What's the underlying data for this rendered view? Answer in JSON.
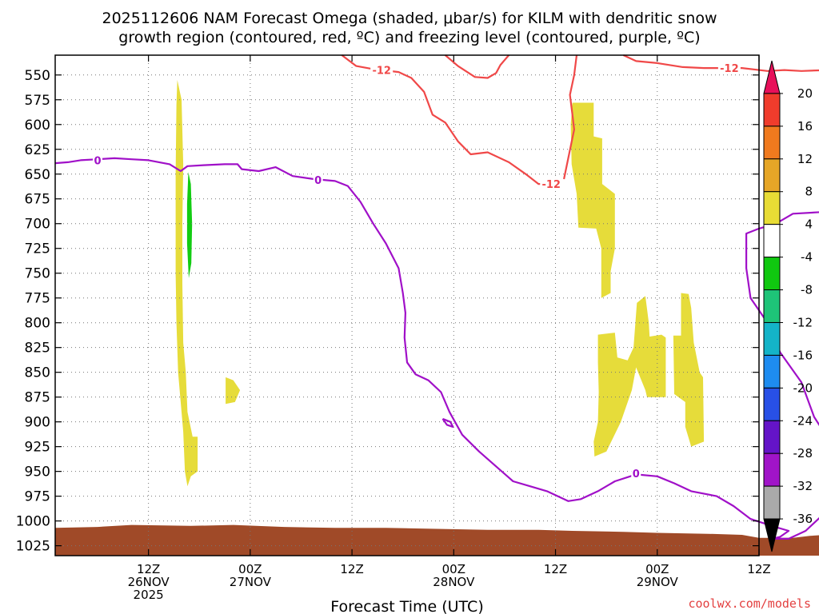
{
  "chart_data": {
    "type": "contour-time-height",
    "title_line1": "2025112606 NAM Forecast Omega (shaded, μbar/s) for KILM with dendritic snow",
    "title_line2": "growth region (contoured, red, ºC) and freezing level (contoured, purple, ºC)",
    "xlabel": "Forecast Time (UTC)",
    "credit": "coolwx.com/models",
    "xlim_hours": [
      -11,
      72
    ],
    "ylim_hpa": [
      530,
      1035
    ],
    "y_ticks": [
      550,
      575,
      600,
      625,
      650,
      675,
      700,
      725,
      750,
      775,
      800,
      825,
      850,
      875,
      900,
      925,
      950,
      975,
      1000,
      1025
    ],
    "x_ticks": [
      {
        "hour": 0,
        "line1": "12Z",
        "line2": "26NOV",
        "line3": "2025"
      },
      {
        "hour": 12,
        "line1": "00Z",
        "line2": "27NOV",
        "line3": ""
      },
      {
        "hour": 24,
        "line1": "12Z",
        "line2": "",
        "line3": ""
      },
      {
        "hour": 36,
        "line1": "00Z",
        "line2": "28NOV",
        "line3": ""
      },
      {
        "hour": 48,
        "line1": "12Z",
        "line2": "",
        "line3": ""
      },
      {
        "hour": 60,
        "line1": "00Z",
        "line2": "29NOV",
        "line3": ""
      },
      {
        "hour": 72,
        "line1": "12Z",
        "line2": "",
        "line3": ""
      }
    ],
    "grid": true,
    "colorbar": {
      "labels": [
        "20",
        "16",
        "12",
        "8",
        "4",
        "-4",
        "-8",
        "-12",
        "-16",
        "-20",
        "-24",
        "-28",
        "-32",
        "-36"
      ],
      "colors_top_to_bottom": [
        "#e8105a",
        "#f03c2c",
        "#f07a1e",
        "#e6a627",
        "#e8dc35",
        "#ffffff",
        "#10c810",
        "#1ec478",
        "#14b4c8",
        "#1e8cf0",
        "#2850e6",
        "#6414c8",
        "#a014c8",
        "#aaaaaa",
        "#000000"
      ]
    },
    "shaded_regions": [
      {
        "name": "4 to 8",
        "color": "#e6dc3a",
        "polygons": [
          [
            [
              3.4,
              555
            ],
            [
              3.9,
              575
            ],
            [
              4.1,
              640
            ],
            [
              4.0,
              700
            ],
            [
              4.0,
              760
            ],
            [
              4.1,
              820
            ],
            [
              4.4,
              850
            ],
            [
              4.6,
              890
            ],
            [
              5.2,
              915
            ],
            [
              5.8,
              915
            ],
            [
              5.8,
              950
            ],
            [
              5.0,
              955
            ],
            [
              4.6,
              965
            ],
            [
              4.3,
              950
            ],
            [
              4.1,
              910
            ],
            [
              3.8,
              880
            ],
            [
              3.5,
              850
            ],
            [
              3.3,
              800
            ],
            [
              3.2,
              750
            ],
            [
              3.2,
              700
            ],
            [
              3.2,
              650
            ],
            [
              3.3,
              580
            ]
          ],
          [
            [
              9.1,
              855
            ],
            [
              10.0,
              858
            ],
            [
              10.8,
              868
            ],
            [
              10.2,
              880
            ],
            [
              9.1,
              882
            ]
          ],
          [
            [
              50.0,
              578
            ],
            [
              52.5,
              578
            ],
            [
              52.5,
              612
            ],
            [
              53.5,
              614
            ],
            [
              53.5,
              660
            ],
            [
              55.0,
              670
            ],
            [
              55.0,
              725
            ],
            [
              54.5,
              748
            ],
            [
              54.5,
              770
            ],
            [
              53.4,
              775
            ],
            [
              53.4,
              725
            ],
            [
              52.8,
              705
            ],
            [
              50.7,
              704
            ],
            [
              50.5,
              670
            ],
            [
              49.9,
              640
            ],
            [
              49.8,
              600
            ]
          ],
          [
            [
              53.0,
              812
            ],
            [
              55.0,
              810
            ],
            [
              55.3,
              835
            ],
            [
              56.5,
              838
            ],
            [
              57.2,
              825
            ],
            [
              57.6,
              780
            ],
            [
              58.6,
              773
            ],
            [
              59.0,
              800
            ],
            [
              59.1,
              814
            ],
            [
              60.5,
              812
            ],
            [
              61.0,
              815
            ],
            [
              61.0,
              875
            ],
            [
              58.8,
              875
            ],
            [
              58.6,
              868
            ],
            [
              57.5,
              845
            ],
            [
              57.0,
              868
            ],
            [
              55.7,
              900
            ],
            [
              54.0,
              930
            ],
            [
              52.6,
              935
            ],
            [
              52.5,
              920
            ],
            [
              53.0,
              900
            ],
            [
              53.1,
              870
            ],
            [
              53.0,
              840
            ]
          ],
          [
            [
              62.8,
              770
            ],
            [
              63.7,
              771
            ],
            [
              64.0,
              785
            ],
            [
              64.3,
              820
            ],
            [
              65.0,
              850
            ],
            [
              65.4,
              855
            ],
            [
              65.5,
              920
            ],
            [
              64.0,
              925
            ],
            [
              63.3,
              905
            ],
            [
              63.3,
              880
            ],
            [
              62.0,
              872
            ],
            [
              61.9,
              813
            ],
            [
              62.8,
              813
            ]
          ]
        ]
      },
      {
        "name": "-8 to -4",
        "color": "#12cc12",
        "polygons": [
          [
            [
              4.7,
              648
            ],
            [
              5.0,
              660
            ],
            [
              5.15,
              700
            ],
            [
              5.05,
              740
            ],
            [
              4.75,
              755
            ],
            [
              4.55,
              720
            ],
            [
              4.55,
              680
            ]
          ]
        ]
      },
      {
        "name": "terrain",
        "color": "#a04a28",
        "polygons": [
          [
            [
              -11,
              1007
            ],
            [
              -6,
              1006
            ],
            [
              -2,
              1004
            ],
            [
              5,
              1005
            ],
            [
              10,
              1004
            ],
            [
              16,
              1006
            ],
            [
              22,
              1007
            ],
            [
              28,
              1007
            ],
            [
              34,
              1008
            ],
            [
              40,
              1009
            ],
            [
              46,
              1009
            ],
            [
              50,
              1010
            ],
            [
              56,
              1011
            ],
            [
              60,
              1012
            ],
            [
              66,
              1013
            ],
            [
              70,
              1014
            ],
            [
              72,
              1017
            ],
            [
              76,
              1017
            ],
            [
              78,
              1015
            ],
            [
              80,
              1014
            ],
            [
              83,
              1013
            ],
            [
              83,
              1035
            ],
            [
              -11,
              1035
            ]
          ]
        ]
      }
    ],
    "contours": [
      {
        "series": "dendritic snow growth region",
        "level": "-12",
        "color": "#f04848",
        "points": [
          [
            22.8,
            530
          ],
          [
            24.5,
            541
          ],
          [
            26.5,
            544
          ],
          [
            29.5,
            547
          ],
          [
            31.0,
            553
          ],
          [
            32.5,
            567
          ],
          [
            33.5,
            590
          ],
          [
            35.0,
            598
          ],
          [
            36.5,
            617
          ],
          [
            38.0,
            630
          ],
          [
            40.0,
            628
          ],
          [
            42.5,
            638
          ],
          [
            44.5,
            650
          ],
          [
            46.0,
            660
          ],
          [
            47.8,
            660
          ]
        ]
      },
      {
        "series": "dendritic snow growth region",
        "level": "-12",
        "color": "#f04848",
        "points": [
          [
            35.0,
            530
          ],
          [
            36.5,
            541
          ],
          [
            38.5,
            552
          ],
          [
            40.0,
            553
          ],
          [
            41.0,
            548
          ],
          [
            41.5,
            540
          ],
          [
            42.5,
            530
          ]
        ]
      },
      {
        "series": "dendritic snow growth region",
        "level": "-12",
        "color": "#f04848",
        "points": [
          [
            49.0,
            655
          ],
          [
            49.6,
            630
          ],
          [
            50.2,
            605
          ],
          [
            50.0,
            590
          ],
          [
            49.7,
            570
          ],
          [
            50.2,
            550
          ],
          [
            50.5,
            530
          ]
        ]
      },
      {
        "series": "dendritic snow growth region",
        "level": "-12",
        "color": "#f04848",
        "points": [
          [
            56.0,
            530
          ],
          [
            57.5,
            536
          ],
          [
            60.0,
            538
          ],
          [
            63.0,
            542
          ],
          [
            65.5,
            543
          ],
          [
            68.0,
            543
          ],
          [
            70.0,
            543
          ],
          [
            73.0,
            546
          ],
          [
            75.0,
            545
          ],
          [
            77.0,
            546
          ],
          [
            80.0,
            545
          ],
          [
            83.0,
            545
          ]
        ]
      },
      {
        "series": "freezing level",
        "level": "0",
        "color": "#a010c8",
        "points": [
          [
            -11,
            639
          ],
          [
            -9.5,
            638
          ],
          [
            -8,
            636
          ],
          [
            -6,
            635
          ],
          [
            -4,
            634
          ],
          [
            -2,
            635
          ],
          [
            0,
            636
          ],
          [
            2.5,
            640
          ],
          [
            3.8,
            647
          ],
          [
            4.6,
            642
          ],
          [
            6.5,
            641
          ],
          [
            9.0,
            640
          ],
          [
            10.5,
            640
          ],
          [
            11.0,
            645
          ],
          [
            13.0,
            647
          ],
          [
            15.0,
            643
          ],
          [
            17.0,
            652
          ],
          [
            19.5,
            655
          ],
          [
            22.0,
            657
          ],
          [
            23.5,
            662
          ],
          [
            25.0,
            678
          ],
          [
            26.5,
            700
          ],
          [
            28.0,
            720
          ],
          [
            29.5,
            745
          ],
          [
            30.0,
            770
          ],
          [
            30.3,
            790
          ],
          [
            30.2,
            815
          ],
          [
            30.5,
            840
          ],
          [
            31.5,
            852
          ],
          [
            33.0,
            858
          ],
          [
            34.5,
            870
          ],
          [
            35.5,
            890
          ],
          [
            37.0,
            913
          ],
          [
            39.0,
            930
          ],
          [
            41.0,
            945
          ],
          [
            43.0,
            960
          ],
          [
            45.0,
            965
          ],
          [
            47.0,
            970
          ],
          [
            49.5,
            980
          ],
          [
            51.0,
            978
          ],
          [
            53.0,
            970
          ],
          [
            55.0,
            960
          ],
          [
            57.5,
            953
          ],
          [
            60.0,
            955
          ],
          [
            62.0,
            962
          ],
          [
            64.0,
            970
          ],
          [
            67.0,
            975
          ],
          [
            69.0,
            985
          ],
          [
            71.0,
            998
          ],
          [
            73.5,
            1005
          ],
          [
            75.5,
            1010
          ],
          [
            74.5,
            1016
          ],
          [
            73.5,
            1018
          ],
          [
            75.5,
            1018
          ],
          [
            77.5,
            1010
          ],
          [
            80.0,
            990
          ],
          [
            83.0,
            968
          ]
        ]
      },
      {
        "series": "freezing level",
        "level": "0",
        "color": "#a010c8",
        "points": [
          [
            34.7,
            897
          ],
          [
            35.6,
            900
          ],
          [
            35.9,
            905
          ],
          [
            35.2,
            903
          ],
          [
            34.7,
            897
          ]
        ]
      },
      {
        "series": "freezing level",
        "level": "0",
        "color": "#a010c8",
        "points": [
          [
            83.0,
            955
          ],
          [
            81.5,
            935
          ],
          [
            80.0,
            915
          ],
          [
            78.5,
            895
          ],
          [
            77.0,
            860
          ],
          [
            74.5,
            830
          ],
          [
            73.0,
            800
          ],
          [
            71.0,
            775
          ],
          [
            70.5,
            745
          ],
          [
            70.5,
            710
          ],
          [
            72.0,
            705
          ],
          [
            74.0,
            700
          ],
          [
            76.0,
            690
          ],
          [
            80.0,
            688
          ],
          [
            83.0,
            689
          ]
        ]
      }
    ],
    "contour_labels": [
      {
        "text": "-12",
        "x": 27.5,
        "y": 545,
        "color": "#f04848"
      },
      {
        "text": "-12",
        "x": 47.5,
        "y": 660,
        "color": "#f04848"
      },
      {
        "text": "-12",
        "x": 68.5,
        "y": 543,
        "color": "#f04848"
      },
      {
        "text": "0",
        "x": -6.0,
        "y": 636,
        "color": "#a010c8"
      },
      {
        "text": "0",
        "x": 20.0,
        "y": 656,
        "color": "#a010c8"
      },
      {
        "text": "0",
        "x": 57.5,
        "y": 952,
        "color": "#a010c8"
      }
    ]
  }
}
